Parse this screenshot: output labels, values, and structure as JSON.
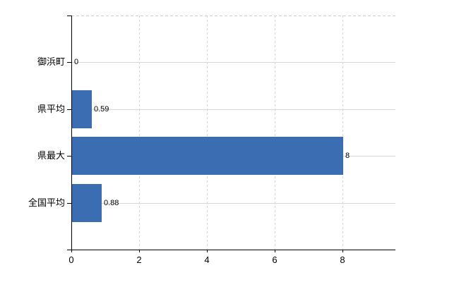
{
  "chart_data": {
    "type": "bar",
    "orientation": "horizontal",
    "title": "",
    "xlabel": "",
    "ylabel": "",
    "categories": [
      "御浜町",
      "県平均",
      "県最大",
      "全国平均"
    ],
    "values": [
      0,
      0.59,
      8,
      0.88
    ],
    "value_labels": [
      "0",
      "0.59",
      "8",
      "0.88"
    ],
    "x_ticks": [
      0,
      2,
      4,
      6,
      8
    ],
    "x_tick_labels": [
      "0",
      "2",
      "4",
      "6",
      "8"
    ],
    "xlim": [
      0,
      9.56
    ],
    "grid": true,
    "legend": false,
    "colors": {
      "bar": "#3b6db3",
      "axis": "#000000",
      "h_gridline": "#d5dbd3",
      "v_gridline": "#d4d4da",
      "top_border": "#cfcfd2",
      "text": "#000000",
      "background": "#ffffff"
    }
  }
}
